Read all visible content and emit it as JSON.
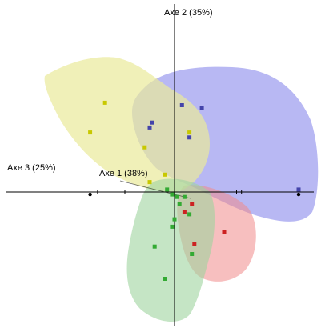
{
  "chart_data": {
    "type": "scatter",
    "title": "",
    "axes": {
      "axis2_label": "Axe 2 (35%)",
      "axis3_label": "Axe 3 (25%)",
      "axis1_label": "Axe 1 (38%)"
    },
    "grid": false,
    "legend": "none",
    "projection": "3D PCA view with translucent group envelopes",
    "series": [
      {
        "color": "#e5e596",
        "marker_color": "#c8c800",
        "points": [
          {
            "x": -1.4,
            "y": 1.8
          },
          {
            "x": -1.7,
            "y": 1.2
          },
          {
            "x": -0.6,
            "y": 0.9
          },
          {
            "x": -0.5,
            "y": 0.2
          },
          {
            "x": 0.3,
            "y": 1.2
          },
          {
            "x": -0.2,
            "y": 0.35
          }
        ]
      },
      {
        "color": "#9999f0",
        "marker_color": "#4444aa",
        "points": [
          {
            "x": 0.15,
            "y": 1.75
          },
          {
            "x": 0.55,
            "y": 1.7
          },
          {
            "x": -0.45,
            "y": 1.4
          },
          {
            "x": -0.5,
            "y": 1.3
          },
          {
            "x": 2.5,
            "y": 0.05
          },
          {
            "x": 0.3,
            "y": 1.1
          }
        ]
      },
      {
        "color": "#f0a0a0",
        "marker_color": "#cc2222",
        "points": [
          {
            "x": 1.0,
            "y": -0.8
          },
          {
            "x": 0.35,
            "y": -0.25
          },
          {
            "x": 0.4,
            "y": -1.05
          },
          {
            "x": 0.2,
            "y": -0.4
          }
        ]
      },
      {
        "color": "#a8dca8",
        "marker_color": "#33aa33",
        "points": [
          {
            "x": -0.05,
            "y": -0.05
          },
          {
            "x": 0.05,
            "y": -0.1
          },
          {
            "x": -0.15,
            "y": 0.05
          },
          {
            "x": 0.0,
            "y": -0.55
          },
          {
            "x": -0.05,
            "y": -0.7
          },
          {
            "x": -0.4,
            "y": -1.1
          },
          {
            "x": 0.35,
            "y": -1.25
          },
          {
            "x": -0.2,
            "y": -1.75
          },
          {
            "x": 0.2,
            "y": -0.1
          },
          {
            "x": 0.3,
            "y": -0.45
          },
          {
            "x": 0.1,
            "y": -0.25
          }
        ]
      }
    ],
    "black_markers": [
      {
        "x": -1.7,
        "y": -0.05
      },
      {
        "x": 2.5,
        "y": -0.05
      }
    ]
  }
}
